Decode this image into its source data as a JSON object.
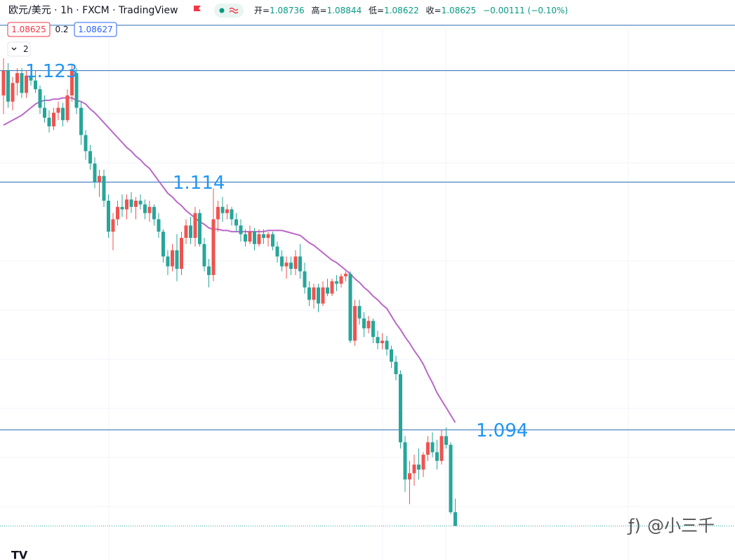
{
  "chart_data": {
    "type": "candlestick",
    "title": "欧元/美元 · 1h · FXCM · TradingView",
    "ohlc_labels": [
      "开=",
      "高=",
      "低=",
      "收="
    ],
    "ohlc_values": [
      1.08736,
      1.08844,
      1.08622,
      1.08625
    ],
    "change": "−0.00111 (−0.10%)",
    "bid": 1.08625,
    "spread": 0.2,
    "ask": 1.08627,
    "indicator_count": 2,
    "watermark": "@小三千",
    "ylim": [
      1.0835,
      1.1287
    ],
    "levels": [
      1.123,
      1.114,
      1.094
    ],
    "up_color": "#ef5350",
    "down_color": "#26a69a",
    "ma_color": "#ba68c8",
    "level_color": "#2a6db5",
    "open": [
      1.121,
      1.123,
      1.1205,
      1.122,
      1.1228,
      1.1212,
      1.1226,
      1.1222,
      1.1215,
      1.12,
      1.1192,
      1.1185,
      1.1196,
      1.12,
      1.119,
      1.121,
      1.1228,
      1.12,
      1.1178,
      1.1165,
      1.1155,
      1.114,
      1.1145,
      1.1125,
      1.11,
      1.111,
      1.112,
      1.1118,
      1.1126,
      1.112,
      1.1125,
      1.1122,
      1.1115,
      1.112,
      1.111,
      1.11,
      1.108,
      1.1072,
      1.1085,
      1.107,
      1.1095,
      1.1105,
      1.1095,
      1.1115,
      1.109,
      1.1072,
      1.1065,
      1.111,
      1.112,
      1.1115,
      1.1118,
      1.111,
      1.1105,
      1.1098,
      1.1092,
      1.11,
      1.109,
      1.1098,
      1.1095,
      1.1098,
      1.1088,
      1.108,
      1.1072,
      1.1075,
      1.107,
      1.108,
      1.1068,
      1.1055,
      1.1045,
      1.1055,
      1.1042,
      1.1055,
      1.105,
      1.106,
      1.1058,
      1.1064,
      1.1066,
      1.1012,
      1.104,
      1.103,
      1.1022,
      1.1028,
      1.1015,
      1.101,
      1.1012,
      1.1005,
      1.0995,
      1.0985,
      1.093,
      1.09,
      1.0905,
      1.0912,
      1.0908,
      1.092,
      1.093,
      1.0922,
      1.0915,
      1.0935,
      1.0928,
      1.08736
    ],
    "high": [
      1.124,
      1.1236,
      1.1225,
      1.1232,
      1.1232,
      1.123,
      1.1234,
      1.123,
      1.1218,
      1.121,
      1.1198,
      1.12,
      1.1205,
      1.1204,
      1.1215,
      1.1235,
      1.1232,
      1.1205,
      1.1182,
      1.117,
      1.116,
      1.115,
      1.115,
      1.113,
      1.1115,
      1.1125,
      1.113,
      1.113,
      1.1132,
      1.1128,
      1.113,
      1.1126,
      1.1125,
      1.1122,
      1.1115,
      1.1102,
      1.1085,
      1.109,
      1.1098,
      1.11,
      1.111,
      1.1112,
      1.112,
      1.1118,
      1.1095,
      1.1078,
      1.1135,
      1.1125,
      1.1128,
      1.1122,
      1.112,
      1.1115,
      1.111,
      1.1102,
      1.1105,
      1.1103,
      1.1102,
      1.1102,
      1.11,
      1.11,
      1.1092,
      1.1085,
      1.108,
      1.108,
      1.1085,
      1.109,
      1.1075,
      1.106,
      1.1058,
      1.1058,
      1.106,
      1.1062,
      1.1062,
      1.1065,
      1.1066,
      1.1068,
      1.1068,
      1.1045,
      1.1045,
      1.1035,
      1.1032,
      1.103,
      1.102,
      1.1018,
      1.1016,
      1.1008,
      1.1,
      1.0988,
      1.0935,
      1.0915,
      1.092,
      1.0925,
      1.0922,
      1.0935,
      1.0938,
      1.0932,
      1.094,
      1.0942,
      1.093,
      1.08844
    ],
    "low": [
      1.1195,
      1.12,
      1.1198,
      1.121,
      1.1208,
      1.1208,
      1.1218,
      1.1212,
      1.1195,
      1.1188,
      1.118,
      1.1182,
      1.119,
      1.1185,
      1.1188,
      1.1205,
      1.1195,
      1.117,
      1.1158,
      1.115,
      1.1135,
      1.1128,
      1.112,
      1.1095,
      1.1085,
      1.1105,
      1.1112,
      1.111,
      1.1115,
      1.111,
      1.1118,
      1.111,
      1.1108,
      1.1105,
      1.1095,
      1.1075,
      1.1065,
      1.1068,
      1.106,
      1.1065,
      1.109,
      1.109,
      1.1088,
      1.1088,
      1.1068,
      1.1055,
      1.106,
      1.11,
      1.1108,
      1.111,
      1.1105,
      1.11,
      1.1092,
      1.1088,
      1.109,
      1.1085,
      1.1088,
      1.109,
      1.1088,
      1.1085,
      1.1075,
      1.1068,
      1.1062,
      1.1065,
      1.1065,
      1.1062,
      1.105,
      1.104,
      1.1038,
      1.1035,
      1.104,
      1.1048,
      1.1048,
      1.1052,
      1.1055,
      1.106,
      1.101,
      1.1008,
      1.1025,
      1.1015,
      1.1018,
      1.101,
      1.1005,
      1.1005,
      1.1,
      1.099,
      1.098,
      1.0925,
      1.089,
      1.088,
      1.0895,
      1.09,
      1.0902,
      1.0915,
      1.0918,
      1.0908,
      1.0912,
      1.0925,
      1.0872,
      1.08622
    ],
    "close": [
      1.123,
      1.1205,
      1.122,
      1.1228,
      1.1212,
      1.1226,
      1.1222,
      1.1215,
      1.12,
      1.1192,
      1.1185,
      1.1196,
      1.12,
      1.119,
      1.121,
      1.123,
      1.12,
      1.1178,
      1.1165,
      1.1155,
      1.114,
      1.1145,
      1.1125,
      1.11,
      1.111,
      1.112,
      1.1118,
      1.1126,
      1.112,
      1.1125,
      1.1122,
      1.1115,
      1.112,
      1.111,
      1.11,
      1.108,
      1.1072,
      1.1085,
      1.107,
      1.1095,
      1.1105,
      1.1095,
      1.1115,
      1.109,
      1.1072,
      1.1065,
      1.111,
      1.112,
      1.1115,
      1.1118,
      1.111,
      1.1105,
      1.1098,
      1.1092,
      1.11,
      1.109,
      1.1098,
      1.1095,
      1.1098,
      1.1088,
      1.108,
      1.1072,
      1.1075,
      1.107,
      1.108,
      1.1068,
      1.1055,
      1.1045,
      1.1055,
      1.1042,
      1.1055,
      1.105,
      1.106,
      1.1058,
      1.1064,
      1.1066,
      1.1012,
      1.104,
      1.103,
      1.1022,
      1.1028,
      1.1015,
      1.101,
      1.1012,
      1.1005,
      1.0995,
      1.0985,
      1.093,
      1.09,
      1.0905,
      1.0912,
      1.0908,
      1.092,
      1.093,
      1.0922,
      1.0915,
      1.0935,
      1.0928,
      1.08736,
      1.08625
    ],
    "ma": [
      1.1186,
      1.1188,
      1.119,
      1.1192,
      1.1194,
      1.1197,
      1.12,
      1.1203,
      1.1205,
      1.1206,
      1.1206,
      1.1207,
      1.1207,
      1.1208,
      1.1208,
      1.1208,
      1.1206,
      1.1205,
      1.1203,
      1.1199,
      1.1196,
      1.1192,
      1.1188,
      1.1184,
      1.118,
      1.1176,
      1.1172,
      1.1168,
      1.1165,
      1.1161,
      1.1158,
      1.1154,
      1.1151,
      1.1146,
      1.1141,
      1.1136,
      1.1131,
      1.1128,
      1.1124,
      1.1121,
      1.1117,
      1.1114,
      1.1111,
      1.1108,
      1.1106,
      1.1103,
      1.1102,
      1.1102,
      1.1101,
      1.1101,
      1.11,
      1.11,
      1.11,
      1.11,
      1.11,
      1.11,
      1.11,
      1.11,
      1.1101,
      1.1101,
      1.1101,
      1.1101,
      1.11,
      1.1099,
      1.1098,
      1.1097,
      1.1094,
      1.1091,
      1.1089,
      1.1086,
      1.1083,
      1.108,
      1.1077,
      1.1075,
      1.1072,
      1.1069,
      1.1066,
      1.1062,
      1.1059,
      1.1055,
      1.1052,
      1.1048,
      1.1045,
      1.1041,
      1.1038,
      1.1032,
      1.1026,
      1.1021,
      1.1015,
      1.101,
      1.1004,
      1.0999,
      1.0993,
      1.0985,
      1.0978,
      1.097,
      1.0964,
      1.0958,
      1.0952,
      1.0946
    ]
  }
}
